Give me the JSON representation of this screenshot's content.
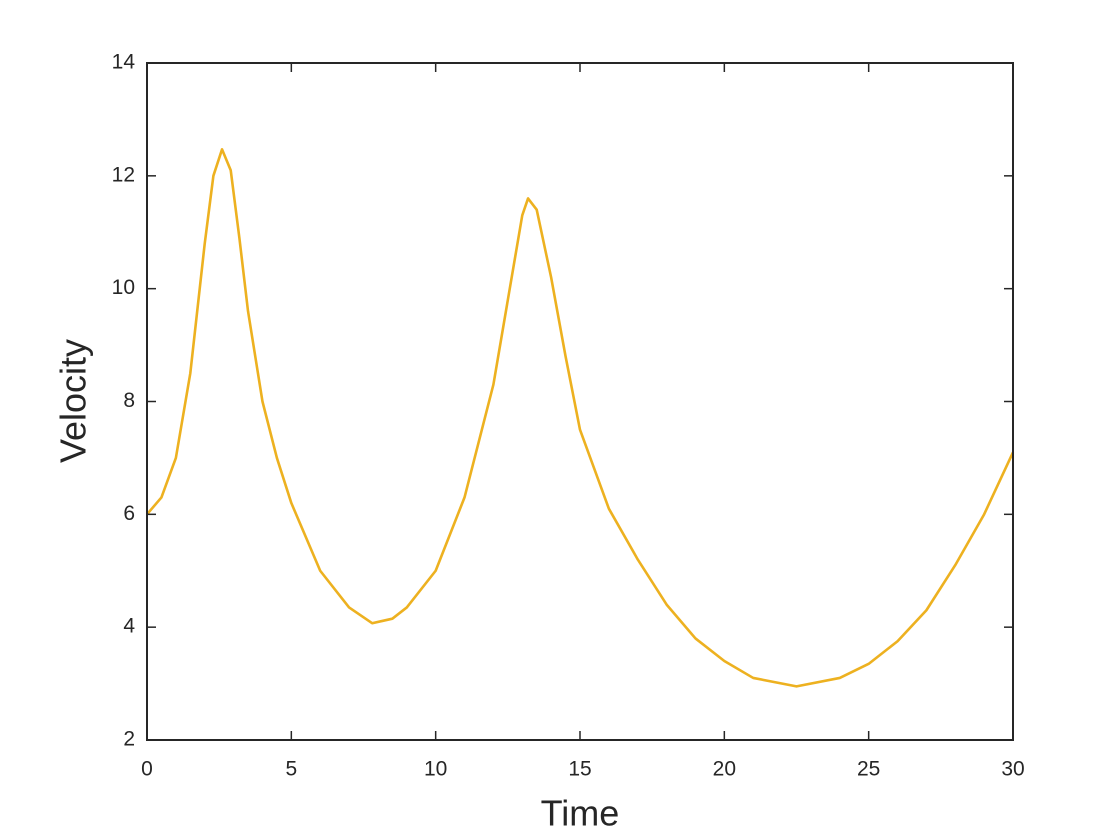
{
  "chart_data": {
    "type": "line",
    "xlabel": "Time",
    "ylabel": "Velocity",
    "xlim": [
      0,
      30
    ],
    "ylim": [
      2,
      14
    ],
    "xticks": [
      0,
      5,
      10,
      15,
      20,
      25,
      30
    ],
    "yticks": [
      2,
      4,
      6,
      8,
      10,
      12,
      14
    ],
    "grid": false,
    "x": [
      0,
      0.5,
      1,
      1.5,
      2,
      2.3,
      2.6,
      2.9,
      3.2,
      3.5,
      4,
      4.5,
      5,
      6,
      7,
      7.8,
      8.5,
      9,
      10,
      11,
      12,
      12.5,
      13,
      13.2,
      13.5,
      14,
      14.5,
      15,
      16,
      17,
      18,
      19,
      20,
      21,
      22.5,
      24,
      25,
      26,
      27,
      28,
      29,
      30
    ],
    "series": [
      {
        "color": "#EDB120",
        "values": [
          6.0,
          6.3,
          7.0,
          8.5,
          10.8,
          12.0,
          12.47,
          12.1,
          10.9,
          9.6,
          8.0,
          7.0,
          6.2,
          5.0,
          4.35,
          4.07,
          4.15,
          4.35,
          5.0,
          6.3,
          8.3,
          9.8,
          11.3,
          11.6,
          11.4,
          10.2,
          8.8,
          7.5,
          6.1,
          5.2,
          4.4,
          3.8,
          3.4,
          3.1,
          2.95,
          3.1,
          3.35,
          3.75,
          4.3,
          5.1,
          6.0,
          7.1
        ]
      }
    ]
  }
}
